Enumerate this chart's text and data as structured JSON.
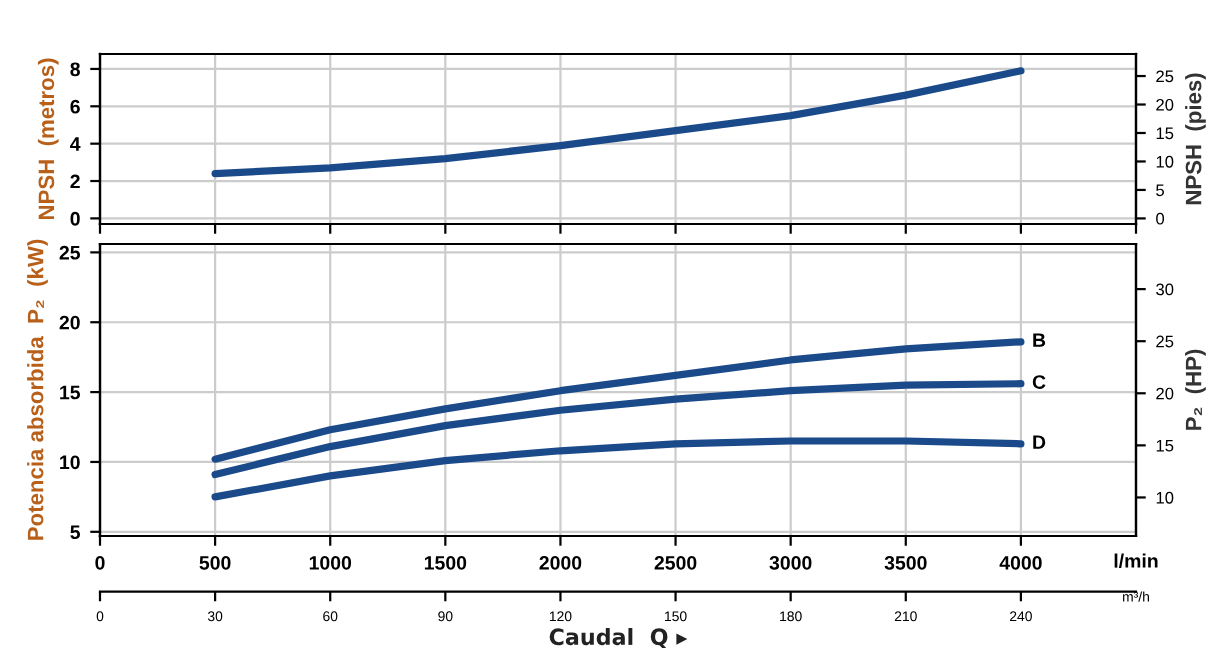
{
  "chart_data": [
    {
      "type": "line",
      "ylabel": "NPSH  (metros)",
      "y2label": "NPSH  (pies)",
      "xlim": [
        0,
        4500
      ],
      "ylim": [
        -0.3,
        8.8
      ],
      "yticks": [
        0,
        2,
        4,
        6,
        8
      ],
      "y2lim": [
        -0.98,
        28.87
      ],
      "y2ticks": [
        0,
        5,
        10,
        15,
        20,
        25
      ],
      "grid": true,
      "tick_labels": "y",
      "legend": false,
      "marker": "none",
      "line_style": "solid",
      "series": [
        {
          "color": "#1a4a8a",
          "x": [
            500,
            1000,
            1500,
            2000,
            2500,
            3000,
            3500,
            4000
          ],
          "values": [
            2.4,
            2.7,
            3.2,
            3.9,
            4.7,
            5.5,
            6.6,
            7.9
          ]
        }
      ]
    },
    {
      "type": "line",
      "ylabel": "Potencia absorbida  P₂  (kW)",
      "y2label": "P₂  (HP)",
      "xlabel": "l/min",
      "x2label": "m³/h",
      "annotations": [
        "Caudal  Q ▸"
      ],
      "xlim": [
        0,
        4500
      ],
      "xticks": [
        0,
        500,
        1000,
        1500,
        2000,
        2500,
        3000,
        3500,
        4000
      ],
      "x2lim": [
        0,
        270
      ],
      "x2ticks": [
        0,
        30,
        60,
        90,
        120,
        150,
        180,
        210,
        240
      ],
      "ylim": [
        4.7,
        25.6
      ],
      "yticks": [
        5,
        10,
        15,
        20,
        25
      ],
      "y2lim": [
        6.3,
        34.33
      ],
      "y2ticks": [
        10,
        15,
        20,
        25,
        30
      ],
      "grid": true,
      "legend": false,
      "marker": "none",
      "line_style": "solid",
      "series": [
        {
          "name": "B",
          "color": "#1a4a8a",
          "x": [
            500,
            1000,
            1500,
            2000,
            2500,
            3000,
            3500,
            4000
          ],
          "values": [
            10.2,
            12.3,
            13.8,
            15.1,
            16.2,
            17.3,
            18.1,
            18.6
          ]
        },
        {
          "name": "C",
          "color": "#1a4a8a",
          "x": [
            500,
            1000,
            1500,
            2000,
            2500,
            3000,
            3500,
            4000
          ],
          "values": [
            9.1,
            11.1,
            12.6,
            13.7,
            14.5,
            15.1,
            15.5,
            15.6
          ]
        },
        {
          "name": "D",
          "color": "#1a4a8a",
          "x": [
            500,
            1000,
            1500,
            2000,
            2500,
            3000,
            3500,
            4000
          ],
          "values": [
            7.5,
            9.0,
            10.1,
            10.8,
            11.3,
            11.5,
            11.5,
            11.3
          ]
        }
      ]
    }
  ]
}
